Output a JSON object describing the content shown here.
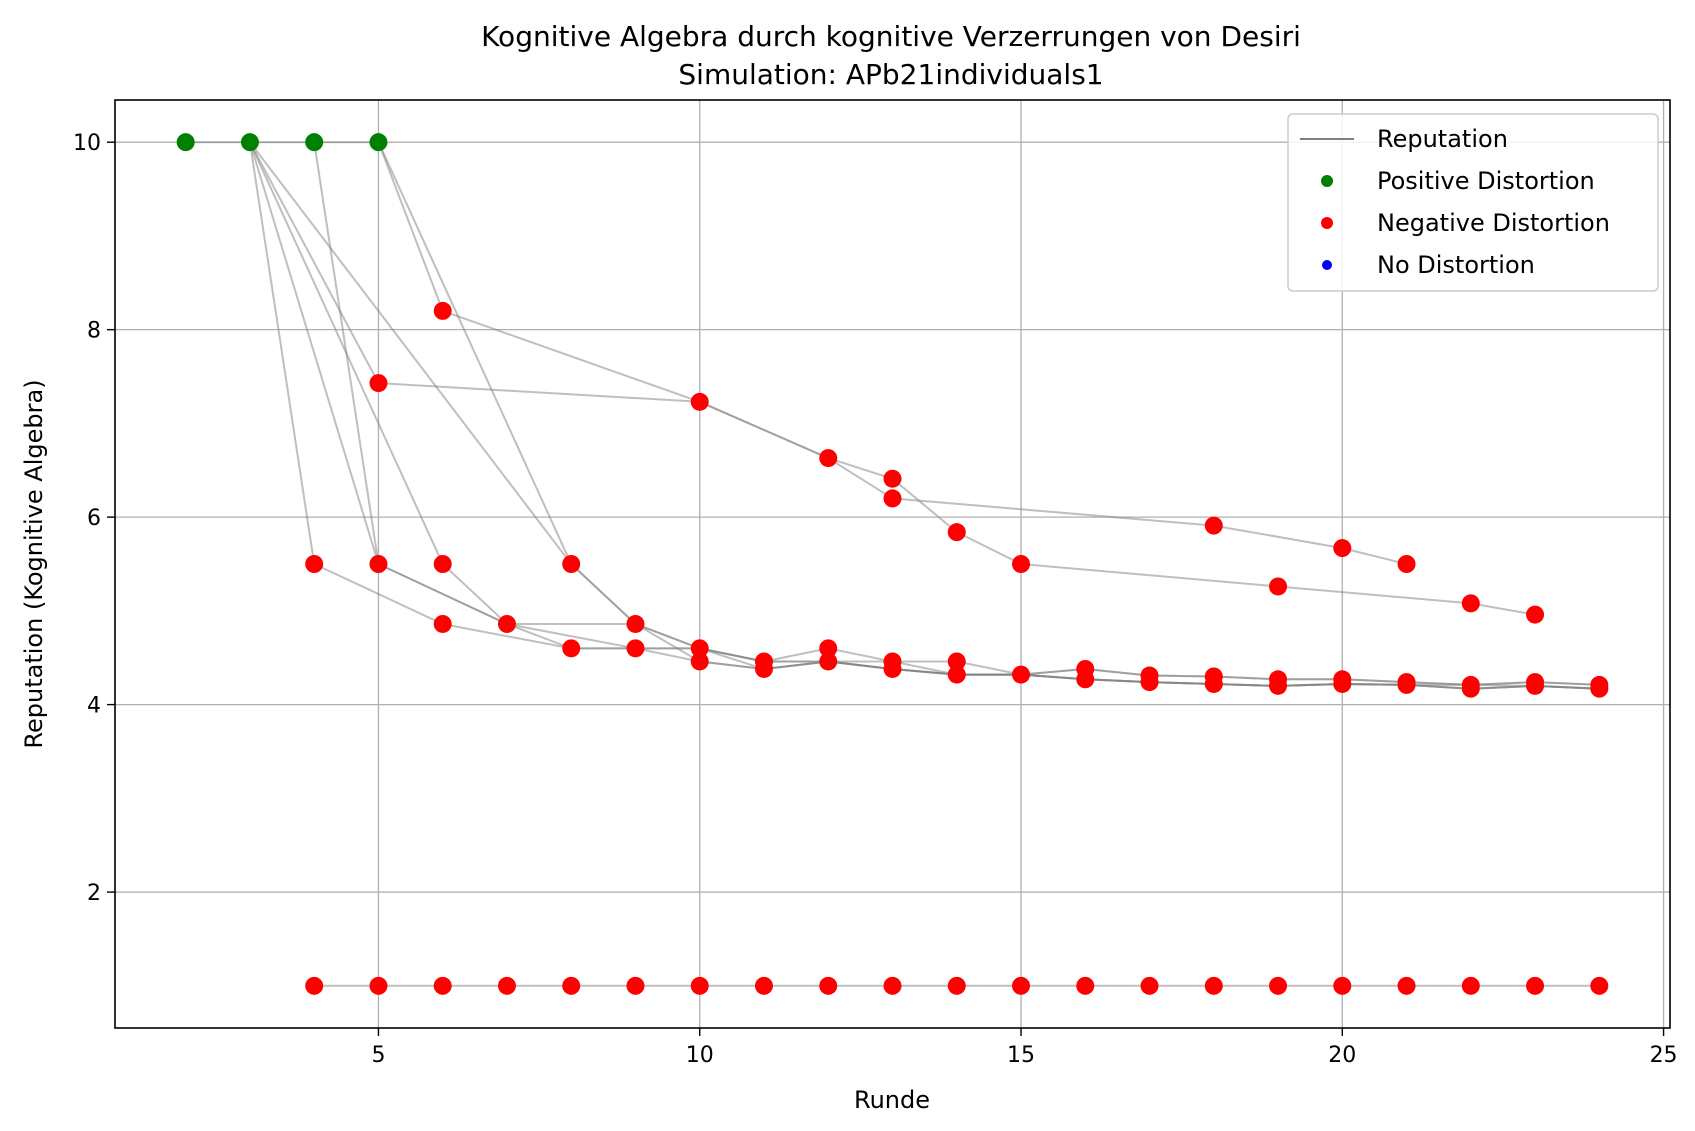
{
  "chart_data": {
    "type": "scatter",
    "title": "Kognitive Algebra durch kognitive Verzerrungen von Desiri",
    "subtitle": "Simulation: APb21individuals1",
    "xlabel": "Runde",
    "ylabel": "Reputation (Kognitive Algebra)",
    "xlim": [
      0.9,
      25.1
    ],
    "ylim": [
      0.55,
      10.45
    ],
    "xticks": [
      5,
      10,
      15,
      20,
      25
    ],
    "yticks": [
      2,
      4,
      6,
      8,
      10
    ],
    "grid": true,
    "legend_position": "top-right",
    "legend": [
      {
        "label": "Reputation",
        "kind": "line",
        "color": "#808080"
      },
      {
        "label": "Positive Distortion",
        "kind": "marker",
        "color": "#008000"
      },
      {
        "label": "Negative Distortion",
        "kind": "marker",
        "color": "#ff0000"
      },
      {
        "label": "No Distortion",
        "kind": "marker",
        "color": "#0000ff"
      }
    ],
    "colors": {
      "line": "#808080",
      "positive": "#008000",
      "negative": "#ff0000",
      "none": "#0000ff"
    },
    "series": [
      {
        "points": [
          [
            2,
            10
          ],
          [
            3,
            10
          ],
          [
            4,
            10
          ],
          [
            5,
            10
          ]
        ]
      },
      {
        "points": [
          [
            3,
            10
          ],
          [
            4,
            5.5
          ],
          [
            6,
            4.86
          ],
          [
            8,
            4.6
          ],
          [
            9,
            4.6
          ],
          [
            10,
            4.46
          ],
          [
            11,
            4.38
          ],
          [
            12,
            4.46
          ],
          [
            13,
            4.38
          ],
          [
            14,
            4.32
          ],
          [
            15,
            4.32
          ],
          [
            16,
            4.27
          ],
          [
            17,
            4.24
          ],
          [
            18,
            4.22
          ],
          [
            19,
            4.2
          ],
          [
            20,
            4.22
          ],
          [
            21,
            4.21
          ],
          [
            22,
            4.17
          ],
          [
            23,
            4.2
          ],
          [
            24,
            4.17
          ]
        ]
      },
      {
        "points": [
          [
            3,
            10
          ],
          [
            5,
            5.5
          ],
          [
            7,
            4.86
          ],
          [
            9,
            4.6
          ],
          [
            10,
            4.6
          ],
          [
            11,
            4.46
          ],
          [
            12,
            4.46
          ],
          [
            13,
            4.38
          ],
          [
            14,
            4.32
          ],
          [
            15,
            4.32
          ],
          [
            16,
            4.27
          ],
          [
            17,
            4.24
          ],
          [
            18,
            4.22
          ],
          [
            19,
            4.2
          ],
          [
            20,
            4.22
          ],
          [
            21,
            4.21
          ],
          [
            22,
            4.21
          ],
          [
            23,
            4.2
          ],
          [
            24,
            4.17
          ]
        ]
      },
      {
        "points": [
          [
            3,
            10
          ],
          [
            6,
            5.5
          ],
          [
            7,
            4.86
          ],
          [
            8,
            4.6
          ],
          [
            10,
            4.6
          ],
          [
            11,
            4.46
          ],
          [
            12,
            4.6
          ],
          [
            13,
            4.46
          ],
          [
            14,
            4.46
          ],
          [
            15,
            4.32
          ],
          [
            16,
            4.38
          ],
          [
            17,
            4.31
          ],
          [
            18,
            4.3
          ],
          [
            19,
            4.27
          ],
          [
            20,
            4.27
          ],
          [
            21,
            4.24
          ],
          [
            22,
            4.21
          ],
          [
            23,
            4.24
          ],
          [
            24,
            4.21
          ]
        ]
      },
      {
        "points": [
          [
            3,
            10
          ],
          [
            8,
            5.5
          ],
          [
            9,
            4.86
          ],
          [
            10,
            4.6
          ],
          [
            11,
            4.46
          ],
          [
            12,
            4.46
          ],
          [
            13,
            4.46
          ],
          [
            14,
            4.32
          ],
          [
            15,
            4.32
          ],
          [
            16,
            4.38
          ],
          [
            17,
            4.31
          ],
          [
            18,
            4.3
          ],
          [
            19,
            4.27
          ],
          [
            20,
            4.27
          ],
          [
            21,
            4.24
          ],
          [
            22,
            4.21
          ],
          [
            23,
            4.24
          ],
          [
            24,
            4.21
          ]
        ]
      },
      {
        "points": [
          [
            3,
            10
          ],
          [
            5,
            7.43
          ],
          [
            10,
            7.23
          ],
          [
            12,
            6.63
          ],
          [
            13,
            6.2
          ],
          [
            18,
            5.91
          ],
          [
            20,
            5.67
          ],
          [
            21,
            5.5
          ]
        ]
      },
      {
        "points": [
          [
            4,
            10
          ],
          [
            5,
            5.5
          ],
          [
            7,
            4.86
          ],
          [
            9,
            4.86
          ],
          [
            10,
            4.6
          ],
          [
            11,
            4.38
          ],
          [
            12,
            4.46
          ],
          [
            13,
            4.38
          ],
          [
            14,
            4.32
          ],
          [
            15,
            4.32
          ],
          [
            16,
            4.27
          ],
          [
            17,
            4.24
          ],
          [
            18,
            4.22
          ],
          [
            19,
            4.2
          ],
          [
            20,
            4.22
          ],
          [
            21,
            4.21
          ],
          [
            22,
            4.17
          ],
          [
            23,
            4.2
          ],
          [
            24,
            4.17
          ]
        ]
      },
      {
        "points": [
          [
            5,
            10
          ],
          [
            6,
            8.2
          ],
          [
            10,
            7.23
          ],
          [
            12,
            6.63
          ],
          [
            13,
            6.41
          ],
          [
            14,
            5.84
          ],
          [
            15,
            5.5
          ],
          [
            19,
            5.26
          ],
          [
            22,
            5.08
          ],
          [
            23,
            4.96
          ]
        ]
      },
      {
        "points": [
          [
            5,
            10
          ],
          [
            8,
            5.5
          ],
          [
            9,
            4.86
          ],
          [
            10,
            4.46
          ],
          [
            11,
            4.38
          ],
          [
            12,
            4.46
          ],
          [
            13,
            4.38
          ],
          [
            14,
            4.32
          ],
          [
            15,
            4.32
          ],
          [
            16,
            4.27
          ],
          [
            17,
            4.24
          ],
          [
            18,
            4.22
          ],
          [
            19,
            4.2
          ],
          [
            20,
            4.22
          ],
          [
            21,
            4.21
          ],
          [
            22,
            4.17
          ],
          [
            23,
            4.2
          ],
          [
            24,
            4.17
          ]
        ]
      },
      {
        "points": [
          [
            4,
            1
          ],
          [
            5,
            1
          ],
          [
            6,
            1
          ],
          [
            7,
            1
          ],
          [
            8,
            1
          ],
          [
            9,
            1
          ],
          [
            10,
            1
          ],
          [
            11,
            1
          ],
          [
            12,
            1
          ],
          [
            13,
            1
          ],
          [
            14,
            1
          ],
          [
            15,
            1
          ],
          [
            16,
            1
          ],
          [
            17,
            1
          ],
          [
            18,
            1
          ],
          [
            19,
            1
          ],
          [
            20,
            1
          ],
          [
            21,
            1
          ],
          [
            22,
            1
          ],
          [
            23,
            1
          ],
          [
            24,
            1
          ]
        ]
      }
    ],
    "points": [
      {
        "x": 2,
        "y": 10,
        "d": "positive"
      },
      {
        "x": 3,
        "y": 10,
        "d": "positive"
      },
      {
        "x": 4,
        "y": 10,
        "d": "positive"
      },
      {
        "x": 5,
        "y": 10,
        "d": "positive"
      },
      {
        "x": 6,
        "y": 8.2,
        "d": "negative"
      },
      {
        "x": 5,
        "y": 7.43,
        "d": "negative"
      },
      {
        "x": 10,
        "y": 7.23,
        "d": "negative"
      },
      {
        "x": 12,
        "y": 6.63,
        "d": "negative"
      },
      {
        "x": 13,
        "y": 6.41,
        "d": "negative"
      },
      {
        "x": 13,
        "y": 6.2,
        "d": "negative"
      },
      {
        "x": 14,
        "y": 5.84,
        "d": "negative"
      },
      {
        "x": 18,
        "y": 5.91,
        "d": "negative"
      },
      {
        "x": 20,
        "y": 5.67,
        "d": "negative"
      },
      {
        "x": 21,
        "y": 5.5,
        "d": "negative"
      },
      {
        "x": 15,
        "y": 5.5,
        "d": "negative"
      },
      {
        "x": 19,
        "y": 5.26,
        "d": "negative"
      },
      {
        "x": 22,
        "y": 5.08,
        "d": "negative"
      },
      {
        "x": 23,
        "y": 4.96,
        "d": "negative"
      },
      {
        "x": 4,
        "y": 5.5,
        "d": "negative"
      },
      {
        "x": 5,
        "y": 5.5,
        "d": "negative"
      },
      {
        "x": 6,
        "y": 5.5,
        "d": "negative"
      },
      {
        "x": 8,
        "y": 5.5,
        "d": "negative"
      },
      {
        "x": 6,
        "y": 4.86,
        "d": "negative"
      },
      {
        "x": 7,
        "y": 4.86,
        "d": "negative"
      },
      {
        "x": 9,
        "y": 4.86,
        "d": "negative"
      },
      {
        "x": 8,
        "y": 4.6,
        "d": "negative"
      },
      {
        "x": 9,
        "y": 4.6,
        "d": "negative"
      },
      {
        "x": 10,
        "y": 4.6,
        "d": "negative"
      },
      {
        "x": 10,
        "y": 4.46,
        "d": "negative"
      },
      {
        "x": 11,
        "y": 4.46,
        "d": "negative"
      },
      {
        "x": 11,
        "y": 4.38,
        "d": "negative"
      },
      {
        "x": 12,
        "y": 4.6,
        "d": "negative"
      },
      {
        "x": 12,
        "y": 4.46,
        "d": "negative"
      },
      {
        "x": 13,
        "y": 4.46,
        "d": "negative"
      },
      {
        "x": 13,
        "y": 4.38,
        "d": "negative"
      },
      {
        "x": 14,
        "y": 4.46,
        "d": "negative"
      },
      {
        "x": 14,
        "y": 4.32,
        "d": "negative"
      },
      {
        "x": 15,
        "y": 4.32,
        "d": "negative"
      },
      {
        "x": 16,
        "y": 4.38,
        "d": "negative"
      },
      {
        "x": 16,
        "y": 4.27,
        "d": "negative"
      },
      {
        "x": 17,
        "y": 4.31,
        "d": "negative"
      },
      {
        "x": 17,
        "y": 4.24,
        "d": "negative"
      },
      {
        "x": 18,
        "y": 4.3,
        "d": "negative"
      },
      {
        "x": 18,
        "y": 4.22,
        "d": "negative"
      },
      {
        "x": 19,
        "y": 4.27,
        "d": "negative"
      },
      {
        "x": 19,
        "y": 4.2,
        "d": "negative"
      },
      {
        "x": 20,
        "y": 4.27,
        "d": "negative"
      },
      {
        "x": 20,
        "y": 4.22,
        "d": "negative"
      },
      {
        "x": 21,
        "y": 4.24,
        "d": "negative"
      },
      {
        "x": 21,
        "y": 4.21,
        "d": "negative"
      },
      {
        "x": 22,
        "y": 4.21,
        "d": "negative"
      },
      {
        "x": 22,
        "y": 4.17,
        "d": "negative"
      },
      {
        "x": 23,
        "y": 4.24,
        "d": "negative"
      },
      {
        "x": 23,
        "y": 4.2,
        "d": "negative"
      },
      {
        "x": 24,
        "y": 4.21,
        "d": "negative"
      },
      {
        "x": 24,
        "y": 4.17,
        "d": "negative"
      },
      {
        "x": 4,
        "y": 1,
        "d": "negative"
      },
      {
        "x": 5,
        "y": 1,
        "d": "negative"
      },
      {
        "x": 6,
        "y": 1,
        "d": "negative"
      },
      {
        "x": 7,
        "y": 1,
        "d": "negative"
      },
      {
        "x": 8,
        "y": 1,
        "d": "negative"
      },
      {
        "x": 9,
        "y": 1,
        "d": "negative"
      },
      {
        "x": 10,
        "y": 1,
        "d": "negative"
      },
      {
        "x": 11,
        "y": 1,
        "d": "negative"
      },
      {
        "x": 12,
        "y": 1,
        "d": "negative"
      },
      {
        "x": 13,
        "y": 1,
        "d": "negative"
      },
      {
        "x": 14,
        "y": 1,
        "d": "negative"
      },
      {
        "x": 15,
        "y": 1,
        "d": "negative"
      },
      {
        "x": 16,
        "y": 1,
        "d": "negative"
      },
      {
        "x": 17,
        "y": 1,
        "d": "negative"
      },
      {
        "x": 18,
        "y": 1,
        "d": "negative"
      },
      {
        "x": 19,
        "y": 1,
        "d": "negative"
      },
      {
        "x": 20,
        "y": 1,
        "d": "negative"
      },
      {
        "x": 21,
        "y": 1,
        "d": "negative"
      },
      {
        "x": 22,
        "y": 1,
        "d": "negative"
      },
      {
        "x": 23,
        "y": 1,
        "d": "negative"
      },
      {
        "x": 24,
        "y": 1,
        "d": "negative"
      }
    ]
  }
}
